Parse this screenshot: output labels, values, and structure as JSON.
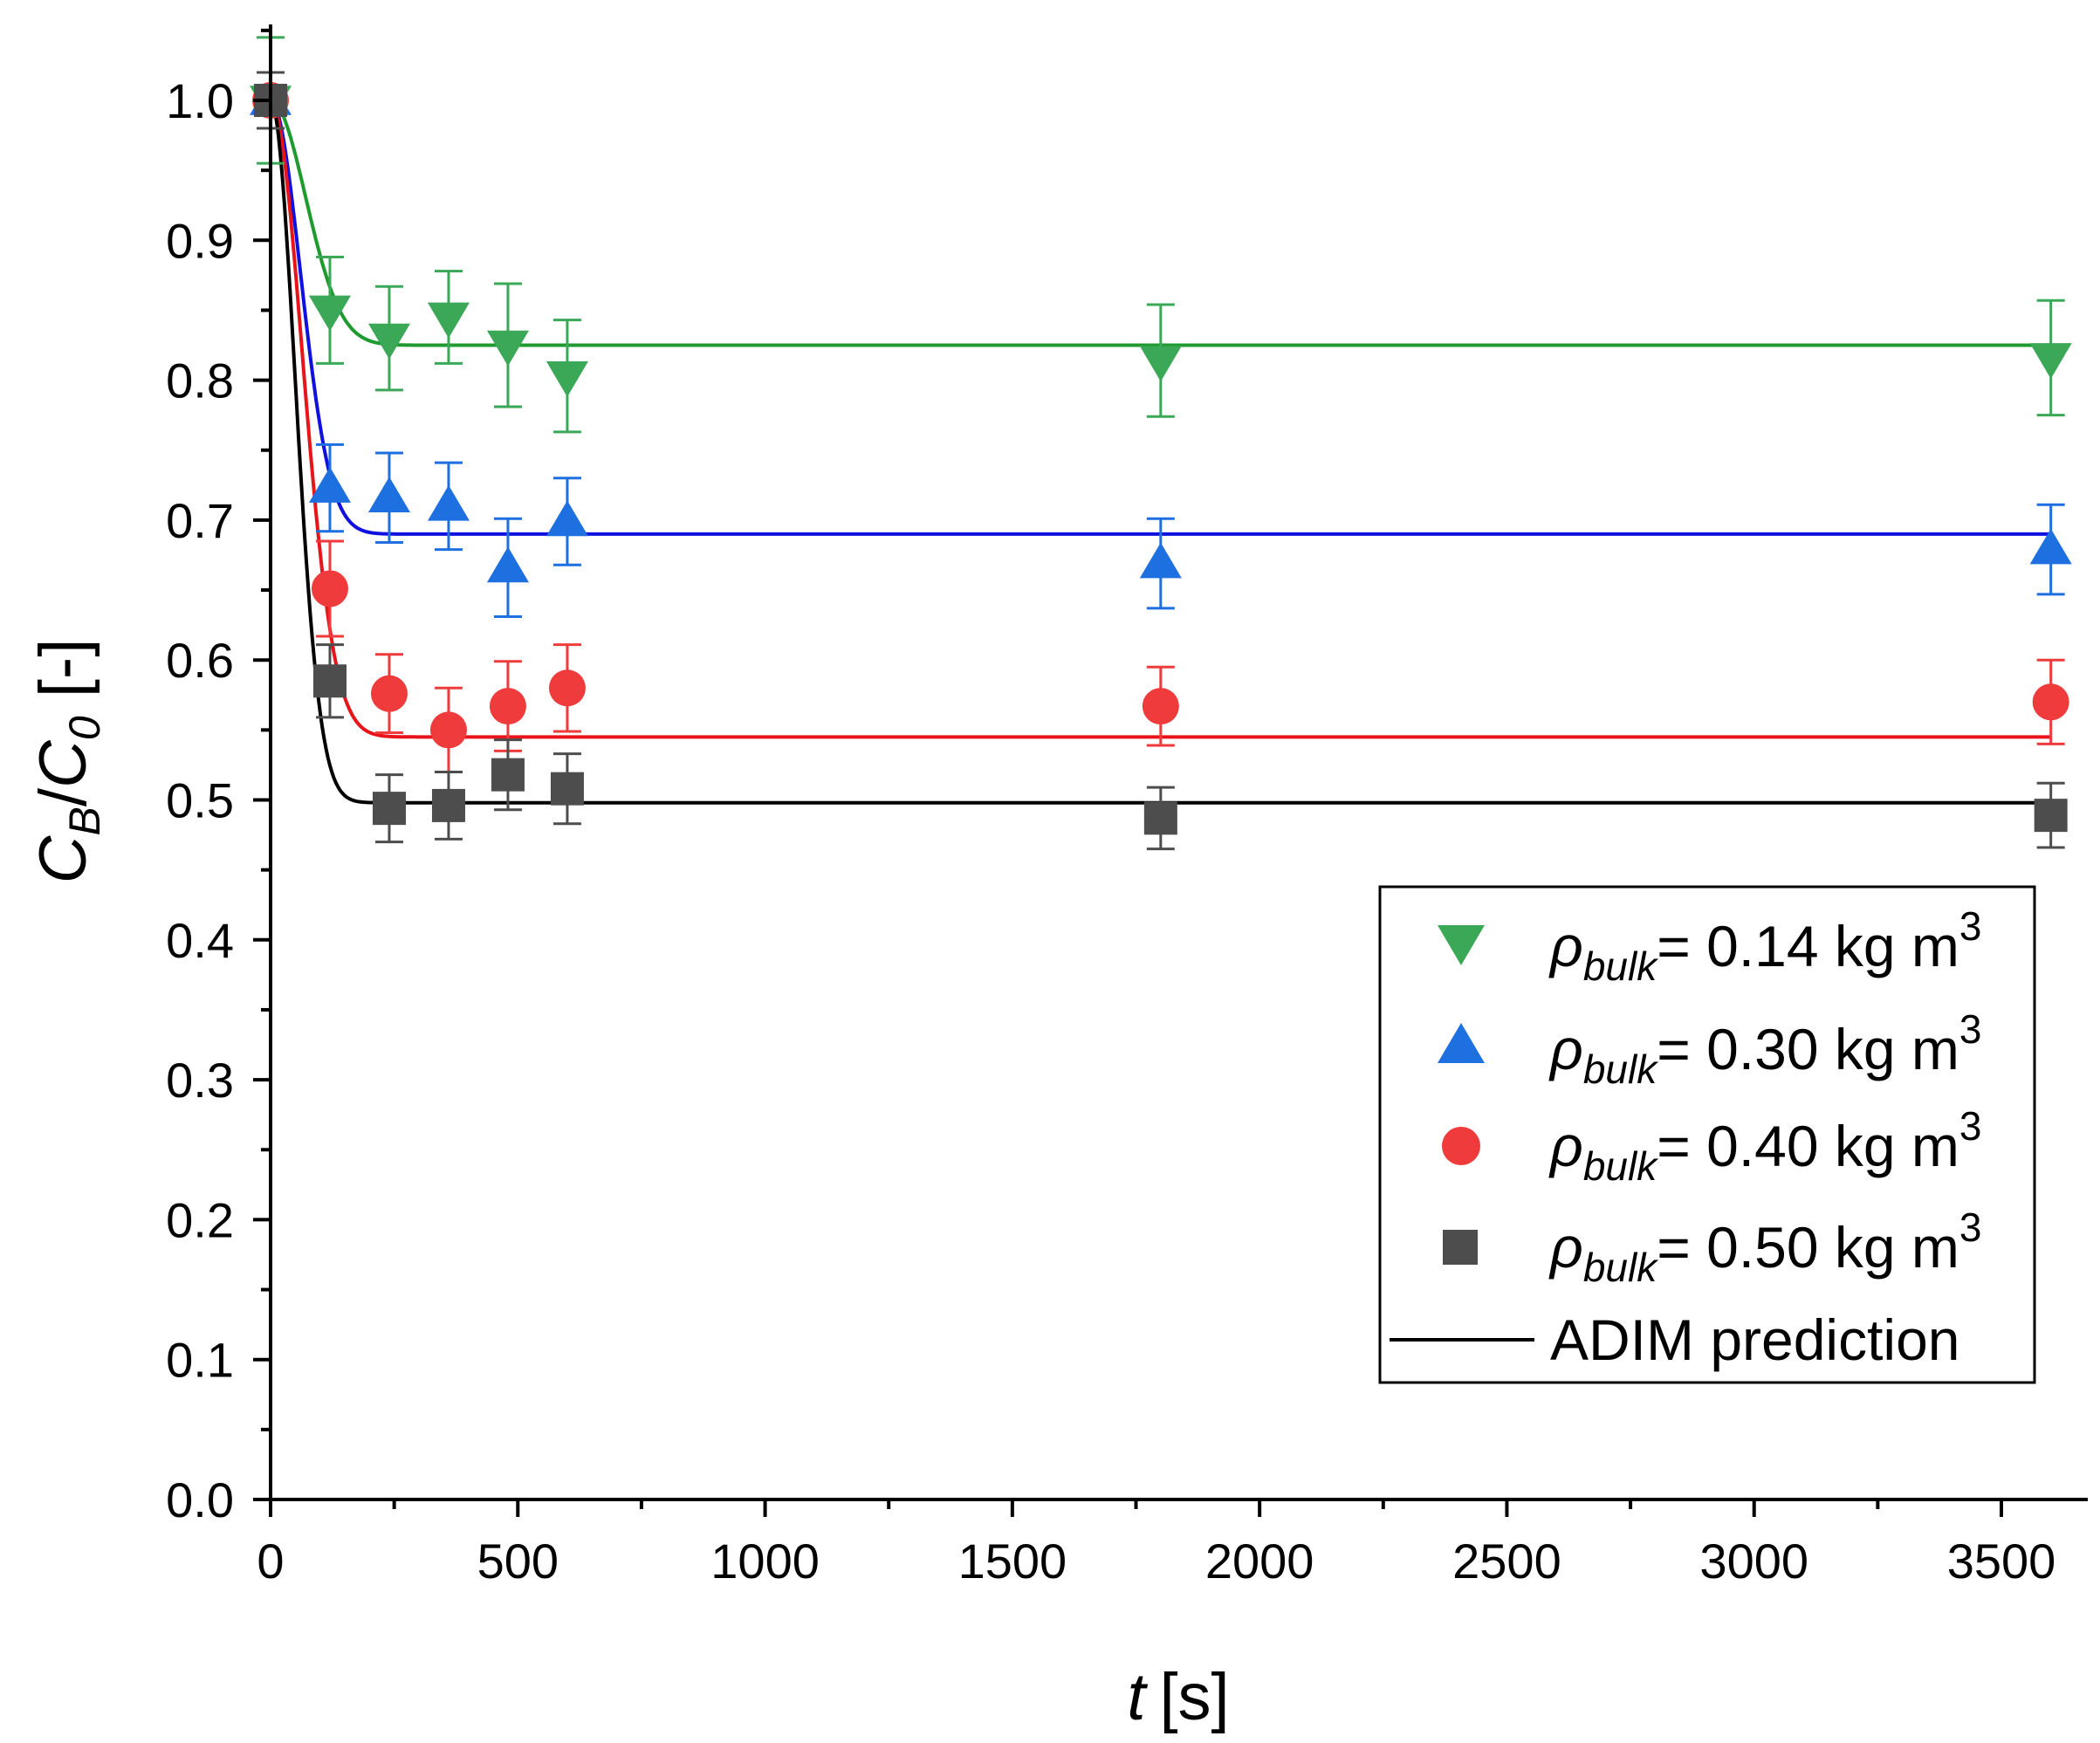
{
  "chart_data": {
    "type": "scatter",
    "title": "",
    "xlabel": {
      "var": "t",
      "unit": "[s]"
    },
    "ylabel": {
      "c1": "C",
      "s1": "B",
      "slash": "/",
      "c2": "C",
      "s2": "0",
      "unit": " [-]"
    },
    "xlim": [
      0,
      3650
    ],
    "ylim": [
      0,
      1.05
    ],
    "x_ticks": [
      0,
      500,
      1000,
      1500,
      2000,
      2500,
      3000,
      3500
    ],
    "x_tick_labels": [
      "0",
      "500",
      "1000",
      "1500",
      "2000",
      "2500",
      "3000",
      "3500"
    ],
    "y_ticks": [
      0,
      0.1,
      0.2,
      0.3,
      0.4,
      0.5,
      0.6,
      0.7,
      0.8,
      0.9,
      1.0
    ],
    "y_tick_labels": [
      "0.0",
      "0.1",
      "0.2",
      "0.3",
      "0.4",
      "0.5",
      "0.6",
      "0.7",
      "0.8",
      "0.9",
      "1.0"
    ],
    "grid": false,
    "legend_position": "bottom-right",
    "series": [
      {
        "name": "ρbulk= 0.14 kg m3",
        "legend": {
          "symbol": "ρ",
          "sub": "bulk",
          "text": "= 0.14 kg m",
          "sup": "3"
        },
        "marker": "triangle-down",
        "color": "#3aa856",
        "x": [
          0,
          120,
          240,
          360,
          480,
          600,
          1800,
          3600
        ],
        "y": [
          1.0,
          0.85,
          0.83,
          0.845,
          0.825,
          0.803,
          0.814,
          0.816
        ],
        "yerr": [
          0.045,
          0.038,
          0.037,
          0.033,
          0.044,
          0.04,
          0.04,
          0.041
        ]
      },
      {
        "name": "ρbulk= 0.30 kg m3",
        "legend": {
          "symbol": "ρ",
          "sub": "bulk",
          "text": "= 0.30 kg m",
          "sup": "3"
        },
        "marker": "triangle-up",
        "color": "#1e6fe0",
        "x": [
          0,
          120,
          240,
          360,
          480,
          600,
          1800,
          3600
        ],
        "y": [
          1.0,
          0.723,
          0.716,
          0.71,
          0.666,
          0.699,
          0.669,
          0.679
        ],
        "yerr": [
          0.02,
          0.031,
          0.032,
          0.031,
          0.035,
          0.031,
          0.032,
          0.032
        ]
      },
      {
        "name": "ρbulk= 0.40 kg m3",
        "legend": {
          "symbol": "ρ",
          "sub": "bulk",
          "text": "= 0.40 kg m",
          "sup": "3"
        },
        "marker": "circle",
        "color": "#ef3b3b",
        "x": [
          0,
          120,
          240,
          360,
          480,
          600,
          1800,
          3600
        ],
        "y": [
          1.0,
          0.651,
          0.576,
          0.55,
          0.567,
          0.58,
          0.567,
          0.57
        ],
        "yerr": [
          0.02,
          0.034,
          0.028,
          0.03,
          0.032,
          0.031,
          0.028,
          0.03
        ]
      },
      {
        "name": "ρbulk= 0.50 kg m3",
        "legend": {
          "symbol": "ρ",
          "sub": "bulk",
          "text": "= 0.50 kg m",
          "sup": "3"
        },
        "marker": "square",
        "color": "#4d4d4d",
        "x": [
          0,
          120,
          240,
          360,
          480,
          600,
          1800,
          3600
        ],
        "y": [
          1.0,
          0.585,
          0.494,
          0.496,
          0.518,
          0.508,
          0.487,
          0.489
        ],
        "yerr": [
          0.02,
          0.026,
          0.024,
          0.024,
          0.025,
          0.025,
          0.022,
          0.023
        ]
      }
    ],
    "fit_lines": {
      "name": "ADIM prediction",
      "curves": [
        {
          "color": "#1f9a2e",
          "plateau": 0.825,
          "tau": 100
        },
        {
          "color": "#1010e0",
          "plateau": 0.69,
          "tau": 85
        },
        {
          "color": "#e8141a",
          "plateau": 0.545,
          "tau": 90
        },
        {
          "color": "#000000",
          "plateau": 0.498,
          "tau": 70
        }
      ],
      "x_end": 3620
    }
  }
}
